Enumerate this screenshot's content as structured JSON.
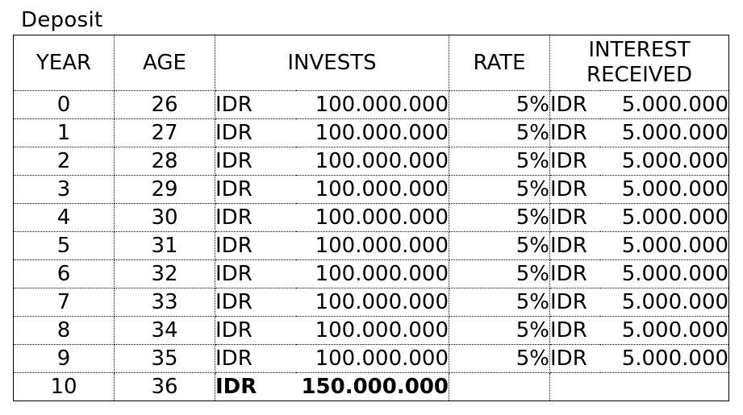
{
  "sheet": {
    "title": "Deposit"
  },
  "table": {
    "headers": {
      "year": "YEAR",
      "age": "AGE",
      "invests": "INVESTS",
      "rate": "RATE",
      "interest_line1": "INTEREST",
      "interest_line2": "RECEIVED"
    },
    "rows": [
      {
        "year": "0",
        "age": "26",
        "invest_currency": "IDR",
        "invest_amount": "100.000.000",
        "rate": "5%",
        "interest_currency": "IDR",
        "interest_amount": "5.000.000"
      },
      {
        "year": "1",
        "age": "27",
        "invest_currency": "IDR",
        "invest_amount": "100.000.000",
        "rate": "5%",
        "interest_currency": "IDR",
        "interest_amount": "5.000.000"
      },
      {
        "year": "2",
        "age": "28",
        "invest_currency": "IDR",
        "invest_amount": "100.000.000",
        "rate": "5%",
        "interest_currency": "IDR",
        "interest_amount": "5.000.000"
      },
      {
        "year": "3",
        "age": "29",
        "invest_currency": "IDR",
        "invest_amount": "100.000.000",
        "rate": "5%",
        "interest_currency": "IDR",
        "interest_amount": "5.000.000"
      },
      {
        "year": "4",
        "age": "30",
        "invest_currency": "IDR",
        "invest_amount": "100.000.000",
        "rate": "5%",
        "interest_currency": "IDR",
        "interest_amount": "5.000.000"
      },
      {
        "year": "5",
        "age": "31",
        "invest_currency": "IDR",
        "invest_amount": "100.000.000",
        "rate": "5%",
        "interest_currency": "IDR",
        "interest_amount": "5.000.000"
      },
      {
        "year": "6",
        "age": "32",
        "invest_currency": "IDR",
        "invest_amount": "100.000.000",
        "rate": "5%",
        "interest_currency": "IDR",
        "interest_amount": "5.000.000"
      },
      {
        "year": "7",
        "age": "33",
        "invest_currency": "IDR",
        "invest_amount": "100.000.000",
        "rate": "5%",
        "interest_currency": "IDR",
        "interest_amount": "5.000.000"
      },
      {
        "year": "8",
        "age": "34",
        "invest_currency": "IDR",
        "invest_amount": "100.000.000",
        "rate": "5%",
        "interest_currency": "IDR",
        "interest_amount": "5.000.000"
      },
      {
        "year": "9",
        "age": "35",
        "invest_currency": "IDR",
        "invest_amount": "100.000.000",
        "rate": "5%",
        "interest_currency": "IDR",
        "interest_amount": "5.000.000"
      }
    ],
    "total_row": {
      "year": "10",
      "age": "36",
      "invest_currency": "IDR",
      "invest_amount": "150.000.000",
      "rate": "",
      "interest_currency": "",
      "interest_amount": ""
    }
  }
}
